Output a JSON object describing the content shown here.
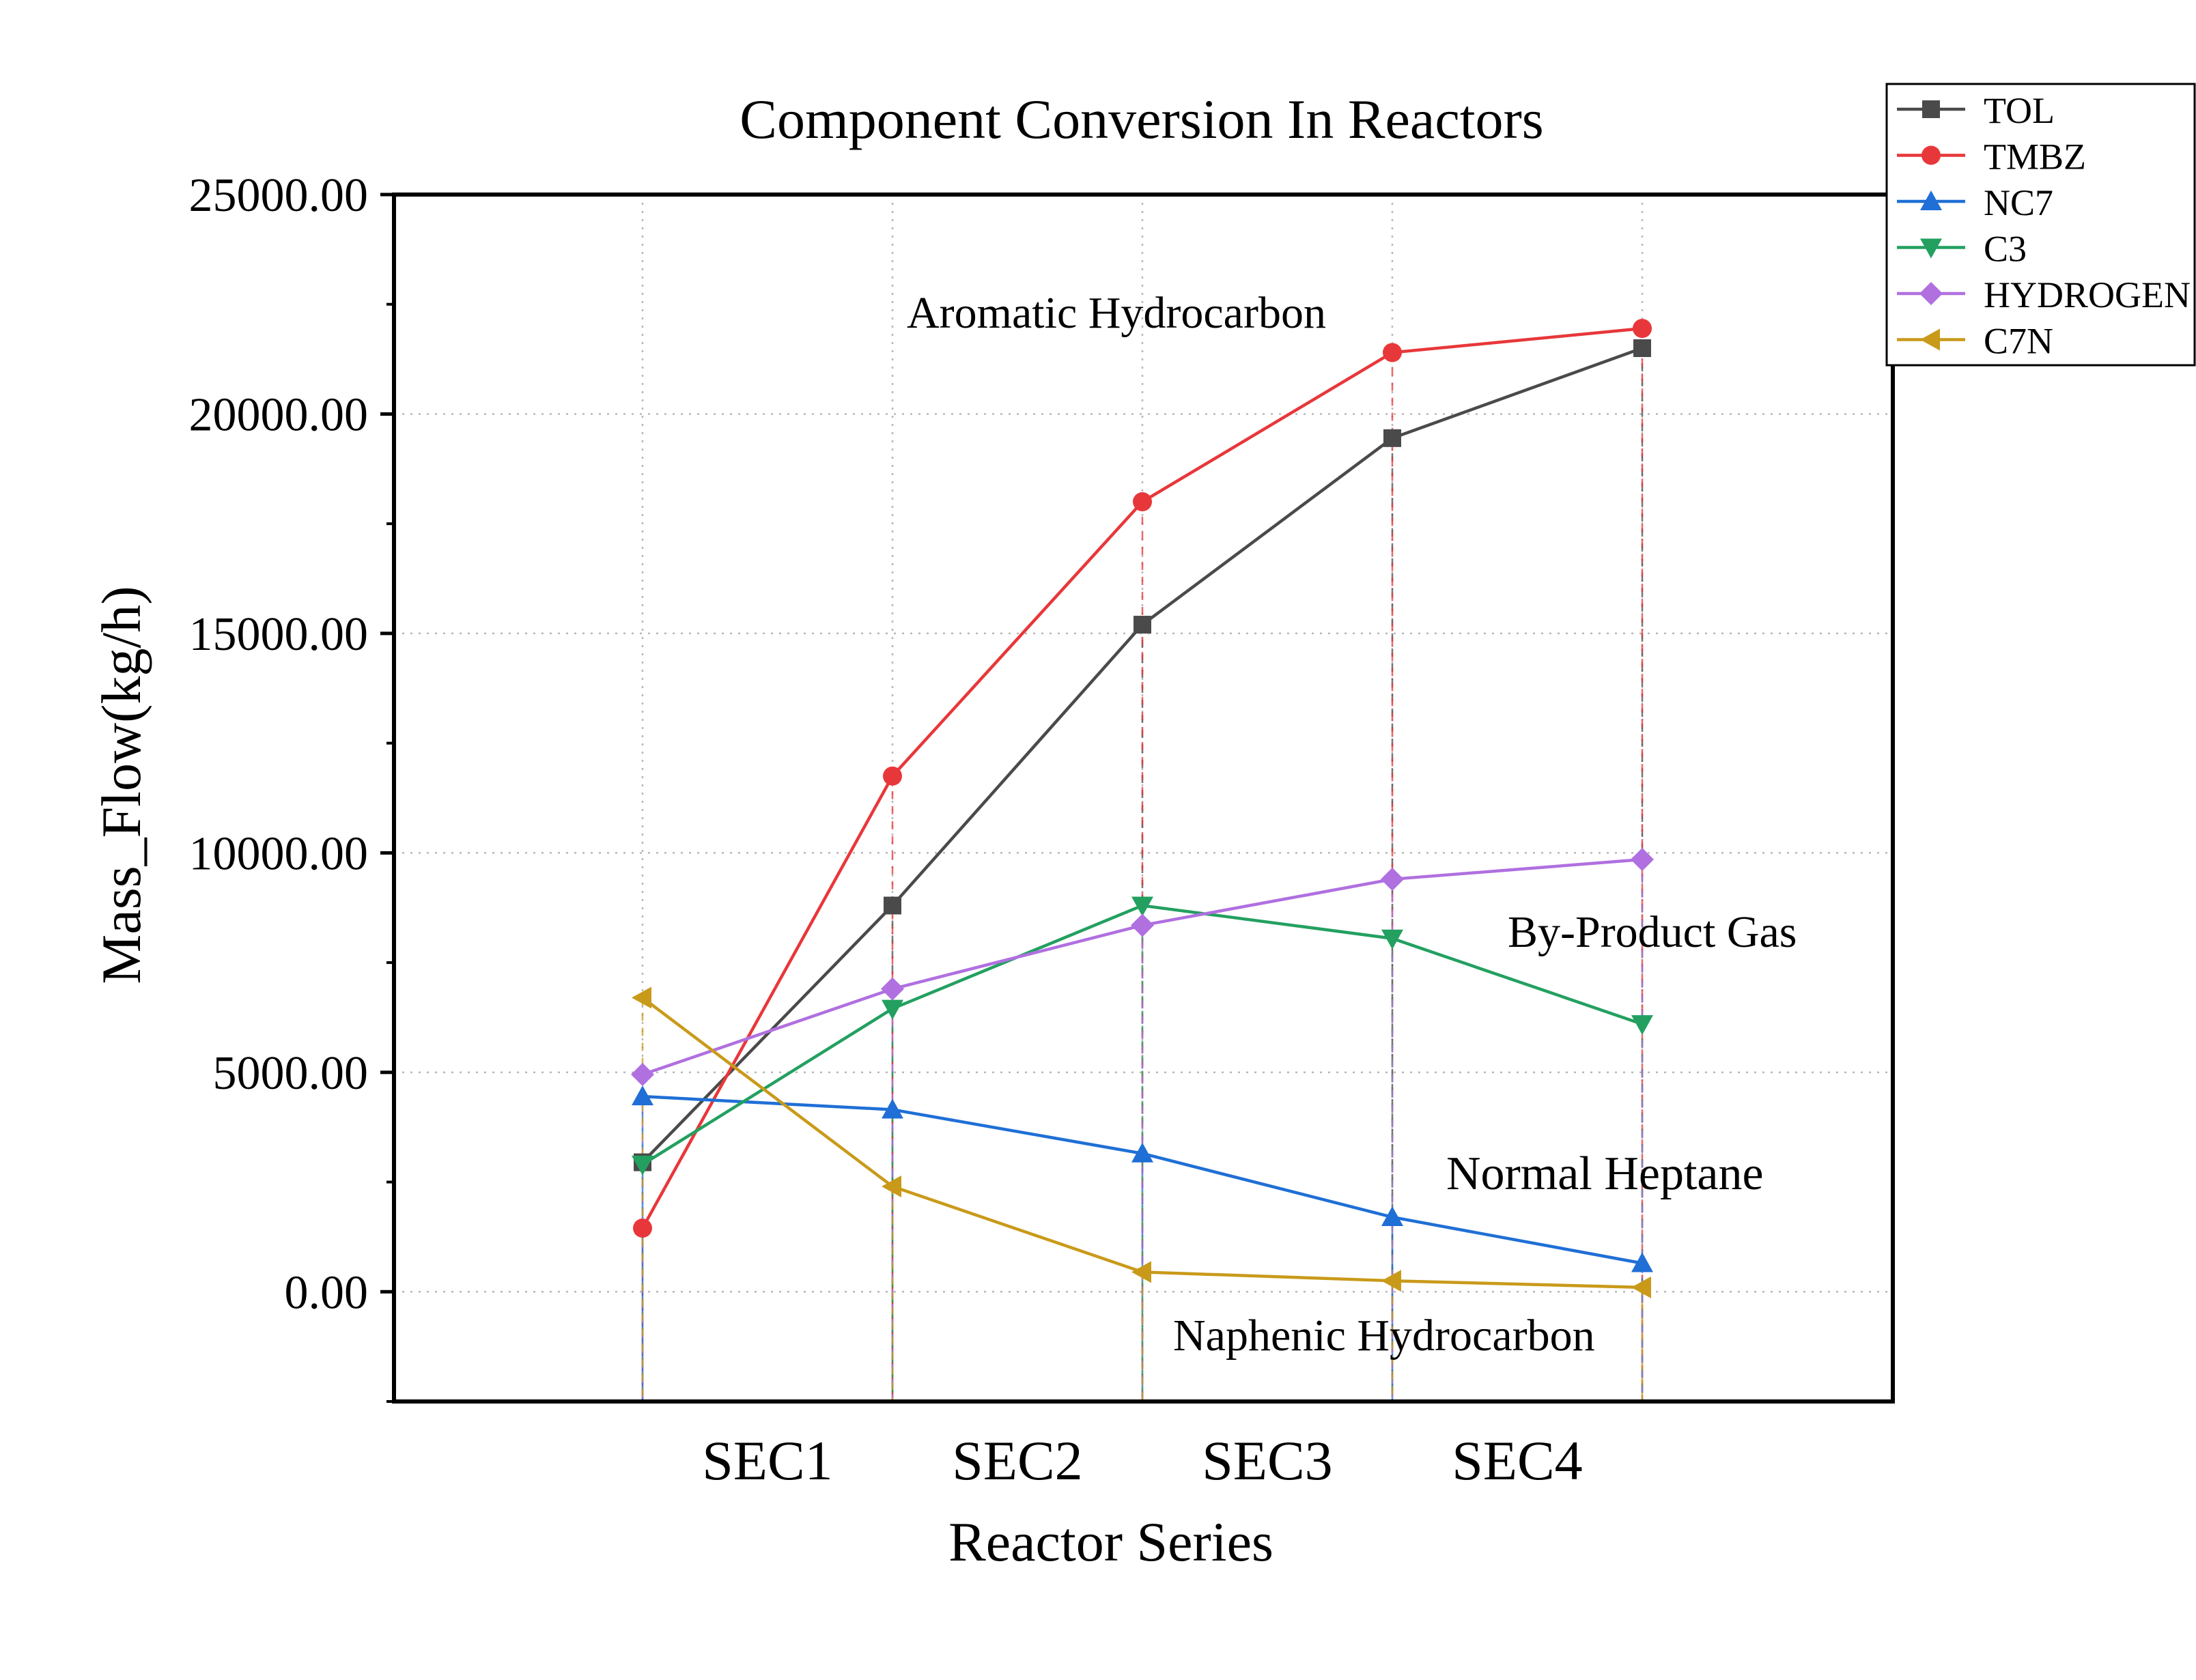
{
  "chart_data": {
    "type": "line",
    "title": "Component Conversion In Reactors",
    "xlabel": "Reactor Series",
    "ylabel": "Mass_Flow(kg/h)",
    "x_points": 5,
    "x_tick_labels": [
      "SEC1",
      "SEC2",
      "SEC3",
      "SEC4"
    ],
    "ylim": [
      -2500,
      25000
    ],
    "y_ticks": [
      0,
      5000,
      10000,
      15000,
      20000,
      25000
    ],
    "y_tick_labels": [
      "0.00",
      "5000.00",
      "10000.00",
      "15000.00",
      "20000.00",
      "25000.00"
    ],
    "grid": true,
    "legend_position": "top-right",
    "series": [
      {
        "name": "TOL",
        "color": "#4a4a4a",
        "marker": "square",
        "values": [
          2950,
          8800,
          15200,
          19450,
          21500
        ]
      },
      {
        "name": "TMBZ",
        "color": "#e8373a",
        "marker": "circle",
        "values": [
          1450,
          11750,
          18000,
          21400,
          21950
        ]
      },
      {
        "name": "NC7",
        "color": "#1f6fd6",
        "marker": "triangle-up",
        "values": [
          4450,
          4150,
          3150,
          1700,
          650
        ]
      },
      {
        "name": "C3",
        "color": "#23a060",
        "marker": "triangle-down",
        "values": [
          2900,
          6450,
          8800,
          8050,
          6100
        ]
      },
      {
        "name": "HYDROGEN",
        "color": "#b070e0",
        "marker": "diamond",
        "values": [
          4950,
          6900,
          8350,
          9400,
          9850
        ]
      },
      {
        "name": "C7N",
        "color": "#c99a1a",
        "marker": "triangle-left",
        "values": [
          6700,
          2400,
          450,
          250,
          100
        ]
      }
    ],
    "annotations": [
      {
        "text": "Aromatic Hydrocarbon"
      },
      {
        "text": "By-Product Gas"
      },
      {
        "text": "Normal Heptane"
      },
      {
        "text": "Naphenic Hydrocarbon"
      }
    ]
  }
}
